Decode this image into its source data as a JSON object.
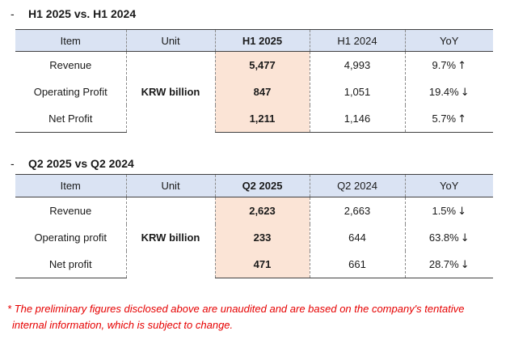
{
  "sections": [
    {
      "title": "H1 2025 vs. H1 2024",
      "headers": [
        "Item",
        "Unit",
        "H1 2025",
        "H1 2024",
        "YoY"
      ],
      "unit": "KRW billion",
      "rows": [
        {
          "item": "Revenue",
          "current": "5,477",
          "previous": "4,993",
          "yoy": "9.7%",
          "arrow": "↑"
        },
        {
          "item": "Operating Profit",
          "current": "847",
          "previous": "1,051",
          "yoy": "19.4%",
          "arrow": "↓"
        },
        {
          "item": "Net Profit",
          "current": "1,211",
          "previous": "1,146",
          "yoy": "5.7%",
          "arrow": "↑"
        }
      ]
    },
    {
      "title": "Q2 2025 vs Q2 2024",
      "headers": [
        "Item",
        "Unit",
        "Q2 2025",
        "Q2 2024",
        "YoY"
      ],
      "unit": "KRW billion",
      "rows": [
        {
          "item": "Revenue",
          "current": "2,623",
          "previous": "2,663",
          "yoy": "1.5%",
          "arrow": "↓"
        },
        {
          "item": "Operating profit",
          "current": "233",
          "previous": "644",
          "yoy": "63.8%",
          "arrow": "↓"
        },
        {
          "item": "Net profit",
          "current": "471",
          "previous": "661",
          "yoy": "28.7%",
          "arrow": "↓"
        }
      ]
    }
  ],
  "footnote": {
    "line1": "* The preliminary figures disclosed above are unaudited and are based on the company's tentative",
    "line2": "internal information, which is subject to change."
  },
  "colors": {
    "header_bg": "#dae3f3",
    "highlight_bg": "#fbe4d6",
    "footnote": "#e60000"
  }
}
